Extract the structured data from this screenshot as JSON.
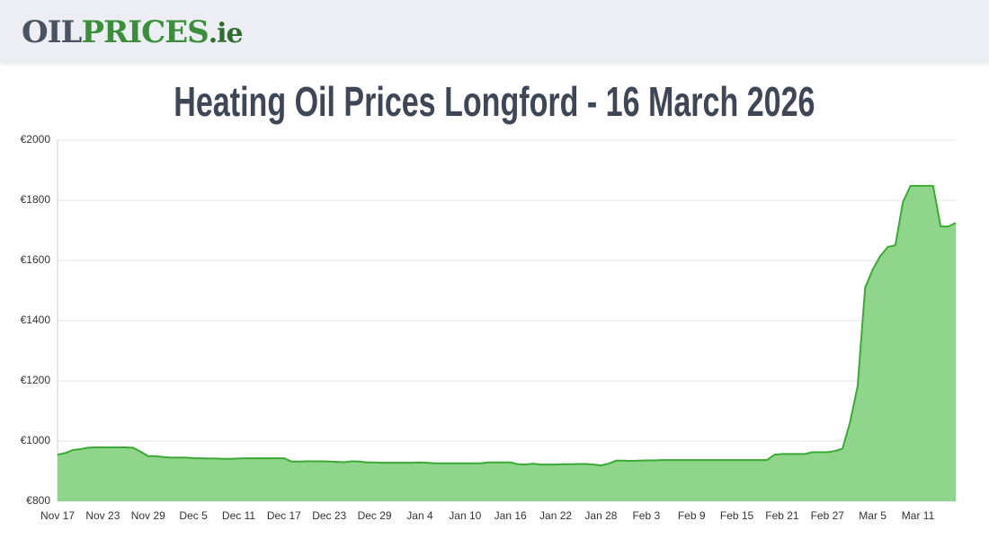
{
  "header": {
    "logo": [
      "OIL",
      "PRICES",
      ".ie"
    ]
  },
  "chart_data": {
    "type": "area",
    "title": "Heating Oil Prices Longford - 16 March 2026",
    "categories": [
      "Nov 17",
      null,
      null,
      null,
      null,
      null,
      "Nov 23",
      null,
      null,
      null,
      null,
      null,
      "Nov 29",
      null,
      null,
      null,
      null,
      null,
      "Dec 5",
      null,
      null,
      null,
      null,
      null,
      "Dec 11",
      null,
      null,
      null,
      null,
      null,
      "Dec 17",
      null,
      null,
      null,
      null,
      null,
      "Dec 23",
      null,
      null,
      null,
      null,
      null,
      "Dec 29",
      null,
      null,
      null,
      null,
      null,
      "Jan 4",
      null,
      null,
      null,
      null,
      null,
      "Jan 10",
      null,
      null,
      null,
      null,
      null,
      "Jan 16",
      null,
      null,
      null,
      null,
      null,
      "Jan 22",
      null,
      null,
      null,
      null,
      null,
      "Jan 28",
      null,
      null,
      null,
      null,
      null,
      "Feb 3",
      null,
      null,
      null,
      null,
      null,
      "Feb 9",
      null,
      null,
      null,
      null,
      null,
      "Feb 15",
      null,
      null,
      null,
      null,
      null,
      "Feb 21",
      null,
      null,
      null,
      null,
      null,
      "Feb 27",
      null,
      null,
      null,
      null,
      null,
      "Mar 5",
      null,
      null,
      null,
      null,
      null,
      "Mar 11",
      null,
      null,
      null,
      null,
      null
    ],
    "values": [
      955,
      960,
      970,
      973,
      978,
      979,
      979,
      979,
      979,
      979,
      978,
      965,
      950,
      950,
      947,
      945,
      945,
      945,
      943,
      943,
      942,
      942,
      941,
      941,
      942,
      943,
      943,
      943,
      943,
      943,
      943,
      932,
      932,
      933,
      933,
      933,
      932,
      931,
      930,
      933,
      932,
      929,
      929,
      928,
      928,
      928,
      928,
      928,
      929,
      928,
      926,
      926,
      926,
      926,
      926,
      926,
      926,
      929,
      929,
      929,
      929,
      923,
      922,
      925,
      922,
      922,
      922,
      923,
      923,
      924,
      924,
      922,
      919,
      925,
      935,
      935,
      934,
      935,
      936,
      936,
      937,
      937,
      937,
      937,
      937,
      937,
      937,
      937,
      937,
      937,
      937,
      937,
      937,
      937,
      937,
      955,
      957,
      957,
      957,
      957,
      963,
      963,
      963,
      967,
      975,
      1063,
      1182,
      1510,
      1570,
      1615,
      1645,
      1651,
      1794,
      1848,
      1848,
      1848,
      1848,
      1713,
      1713,
      1725
    ],
    "color": "#3aaa35",
    "ylim": [
      800,
      2000
    ],
    "yticks": [
      {
        "value": 800,
        "label": "€800"
      },
      {
        "value": 1000,
        "label": "€1000"
      },
      {
        "value": 1200,
        "label": "€1200"
      },
      {
        "value": 1400,
        "label": "€1400"
      },
      {
        "value": 1600,
        "label": "€1600"
      },
      {
        "value": 1800,
        "label": "€1800"
      },
      {
        "value": 2000,
        "label": "€2000"
      }
    ],
    "grid": true
  }
}
